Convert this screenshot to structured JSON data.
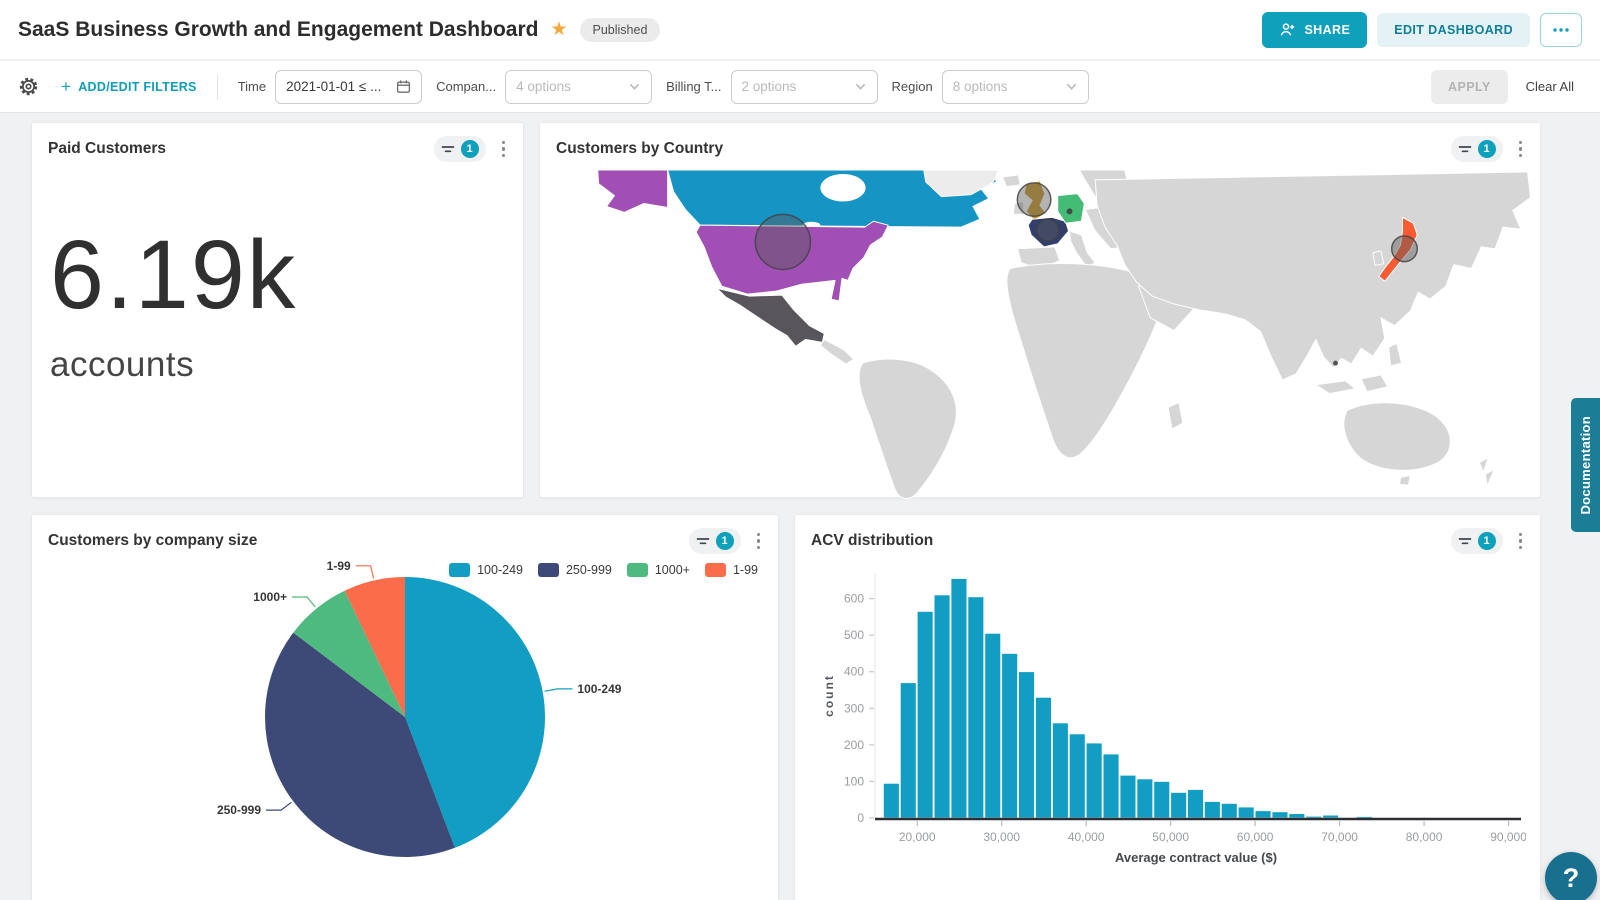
{
  "page": {
    "background": "#f0f1f2",
    "accent_teal": "#0FA0BC"
  },
  "header": {
    "title": "SaaS Business Growth and Engagement Dashboard",
    "star_icon": "star-icon",
    "status_badge": "Published",
    "share_button": "SHARE",
    "edit_button": "EDIT DASHBOARD"
  },
  "filter_bar": {
    "plus": "+",
    "add_edit_filters": "ADD/EDIT FILTERS",
    "filters": [
      {
        "label": "Time",
        "value": "2021-01-01 ≤ ...",
        "type": "date"
      },
      {
        "label": "Compan...",
        "value": "4 options",
        "type": "select"
      },
      {
        "label": "Billing T...",
        "value": "2 options",
        "type": "select"
      },
      {
        "label": "Region",
        "value": "8 options",
        "type": "select"
      }
    ],
    "apply_button": "APPLY",
    "clear_all": "Clear All"
  },
  "widgets": {
    "kpi": {
      "title": "Paid Customers",
      "filter_badge": "1",
      "value": "6.19k",
      "label": "accounts"
    },
    "map": {
      "title": "Customers by Country",
      "filter_badge": "1"
    },
    "pie": {
      "title": "Customers by company size",
      "filter_badge": "1"
    },
    "histogram": {
      "title": "ACV distribution",
      "filter_badge": "1"
    }
  },
  "chart_data": [
    {
      "id": "customers-by-country",
      "type": "map",
      "title": "Customers by Country",
      "highlighted_countries": {
        "canada": "#1695C5",
        "usa": "#A14FB4",
        "alaska": "#A14FB4",
        "mexico": "#59565B",
        "uk": "#C9992B",
        "france": "#323F6B",
        "germany": "#44BC76",
        "japan": "#FA5B32"
      },
      "other_country_color": "#D6D6D6",
      "markers": [
        {
          "country": "usa",
          "size": "large"
        },
        {
          "country": "uk",
          "size": "medium"
        },
        {
          "country": "france",
          "size": "small"
        },
        {
          "country": "japan",
          "size": "small"
        },
        {
          "country": "germany",
          "size": "dot"
        },
        {
          "country": "singapore",
          "size": "dot"
        }
      ]
    },
    {
      "id": "customers-by-company-size",
      "type": "pie",
      "title": "Customers by company size",
      "categories": [
        "100-249",
        "250-999",
        "1000+",
        "1-99"
      ],
      "values": [
        44.2,
        41.1,
        7.6,
        7.1
      ],
      "colors": [
        "#129EC2",
        "#3D4A77",
        "#4FBA7F",
        "#FB6C4B"
      ],
      "legend_position": "top-right",
      "labels_shown": [
        "1-99",
        "1000+",
        "250-999",
        "100-249"
      ]
    },
    {
      "id": "acv-distribution",
      "type": "bar",
      "title": "ACV distribution",
      "xlabel": "Average contract value ($)",
      "ylabel": "count",
      "bin_start": 16000,
      "bin_width": 2000,
      "values": [
        95,
        370,
        565,
        610,
        655,
        605,
        505,
        450,
        400,
        330,
        260,
        230,
        205,
        175,
        117,
        107,
        100,
        70,
        78,
        45,
        40,
        30,
        20,
        17,
        12,
        5,
        8,
        1,
        4,
        1
      ],
      "bar_color": "#129EC2",
      "xlim": [
        15000,
        91000
      ],
      "ylim": [
        0,
        670
      ],
      "y_ticks": [
        0,
        100,
        200,
        300,
        400,
        500,
        600
      ],
      "x_ticks": [
        {
          "v": 20000,
          "label": "20,000"
        },
        {
          "v": 30000,
          "label": "30,000"
        },
        {
          "v": 40000,
          "label": "40,000"
        },
        {
          "v": 50000,
          "label": "50,000"
        },
        {
          "v": 60000,
          "label": "60,000"
        },
        {
          "v": 70000,
          "label": "70,000"
        },
        {
          "v": 80000,
          "label": "80,000"
        },
        {
          "v": 90000,
          "label": "90,000"
        }
      ],
      "grid": false,
      "legend": false
    }
  ],
  "side_panel": {
    "documentation_tab": "Documentation"
  },
  "help_button": {
    "label": "?"
  }
}
